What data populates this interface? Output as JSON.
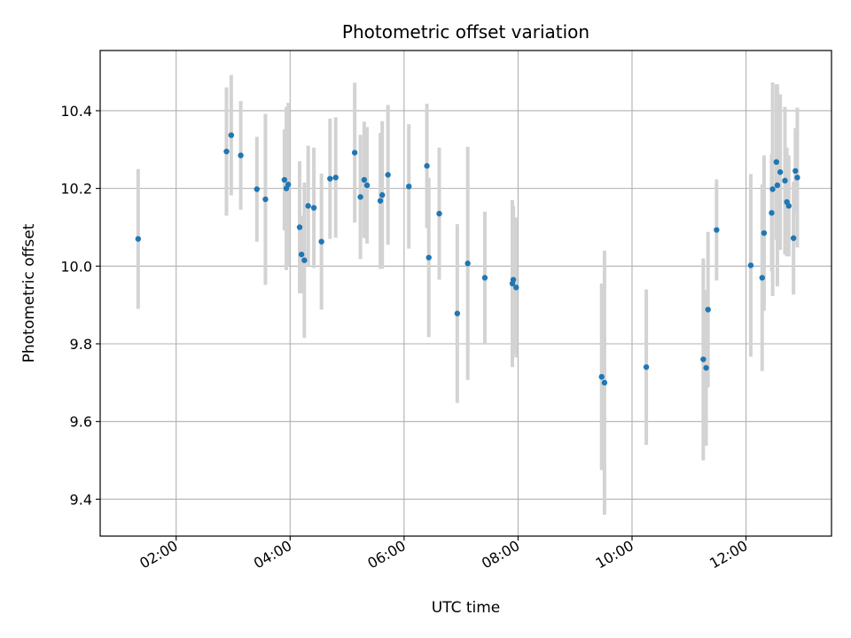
{
  "chart_data": {
    "type": "scatter",
    "title": "Photometric offset variation",
    "xlabel": "UTC time",
    "ylabel": "Photometric offset",
    "x_ticks": [
      "02:00",
      "04:00",
      "06:00",
      "08:00",
      "10:00",
      "12:00"
    ],
    "y_ticks": [
      "9.4",
      "9.6",
      "9.8",
      "10.0",
      "10.2",
      "10.4"
    ],
    "xlim": [
      "00:40",
      "13:30"
    ],
    "ylim": [
      9.305,
      10.555
    ],
    "grid": true,
    "legend": "none",
    "colors": {
      "point": "#1f77b4",
      "errorbar": "#d3d3d3",
      "grid": "#b0b0b0"
    },
    "series": [
      {
        "x": [
          "01:20",
          "02:53",
          "02:58",
          "03:08",
          "03:25",
          "03:34",
          "03:54",
          "03:56",
          "03:58",
          "04:10",
          "04:12",
          "04:15",
          "04:19",
          "04:25",
          "04:33",
          "04:42",
          "04:48",
          "05:08",
          "05:14",
          "05:18",
          "05:21",
          "05:35",
          "05:37",
          "05:43",
          "06:05",
          "06:24",
          "06:26",
          "06:37",
          "06:56",
          "07:07",
          "07:25",
          "07:54",
          "07:55",
          "07:58",
          "09:28",
          "09:31",
          "10:15",
          "11:15",
          "11:18",
          "11:20",
          "11:29",
          "12:05",
          "12:17",
          "12:19",
          "12:27",
          "12:28",
          "12:32",
          "12:33",
          "12:36",
          "12:41",
          "12:43",
          "12:45",
          "12:50",
          "12:52",
          "12:54"
        ],
        "y": [
          10.07,
          10.295,
          10.337,
          10.285,
          10.198,
          10.172,
          10.222,
          10.2,
          10.21,
          10.1,
          10.03,
          10.015,
          10.155,
          10.15,
          10.063,
          10.225,
          10.228,
          10.292,
          10.178,
          10.222,
          10.208,
          10.168,
          10.183,
          10.235,
          10.205,
          10.258,
          10.022,
          10.135,
          9.878,
          10.007,
          9.97,
          9.955,
          9.965,
          9.945,
          9.715,
          9.7,
          9.74,
          9.76,
          9.738,
          9.888,
          10.093,
          10.002,
          9.97,
          10.085,
          10.137,
          10.198,
          10.268,
          10.208,
          10.242,
          10.22,
          10.165,
          10.155,
          10.072,
          10.245,
          10.228
        ],
        "y_err": [
          0.18,
          0.165,
          0.155,
          0.14,
          0.135,
          0.22,
          0.13,
          0.21,
          0.21,
          0.17,
          0.1,
          0.2,
          0.155,
          0.155,
          0.175,
          0.155,
          0.155,
          0.18,
          0.16,
          0.15,
          0.15,
          0.175,
          0.19,
          0.18,
          0.16,
          0.16,
          0.205,
          0.17,
          0.23,
          0.3,
          0.17,
          0.215,
          0.19,
          0.18,
          0.24,
          0.34,
          0.2,
          0.26,
          0.2,
          0.2,
          0.13,
          0.235,
          0.24,
          0.2,
          0.15,
          0.275,
          0.2,
          0.26,
          0.2,
          0.19,
          0.14,
          0.13,
          0.145,
          0.11,
          0.18
        ]
      }
    ]
  }
}
